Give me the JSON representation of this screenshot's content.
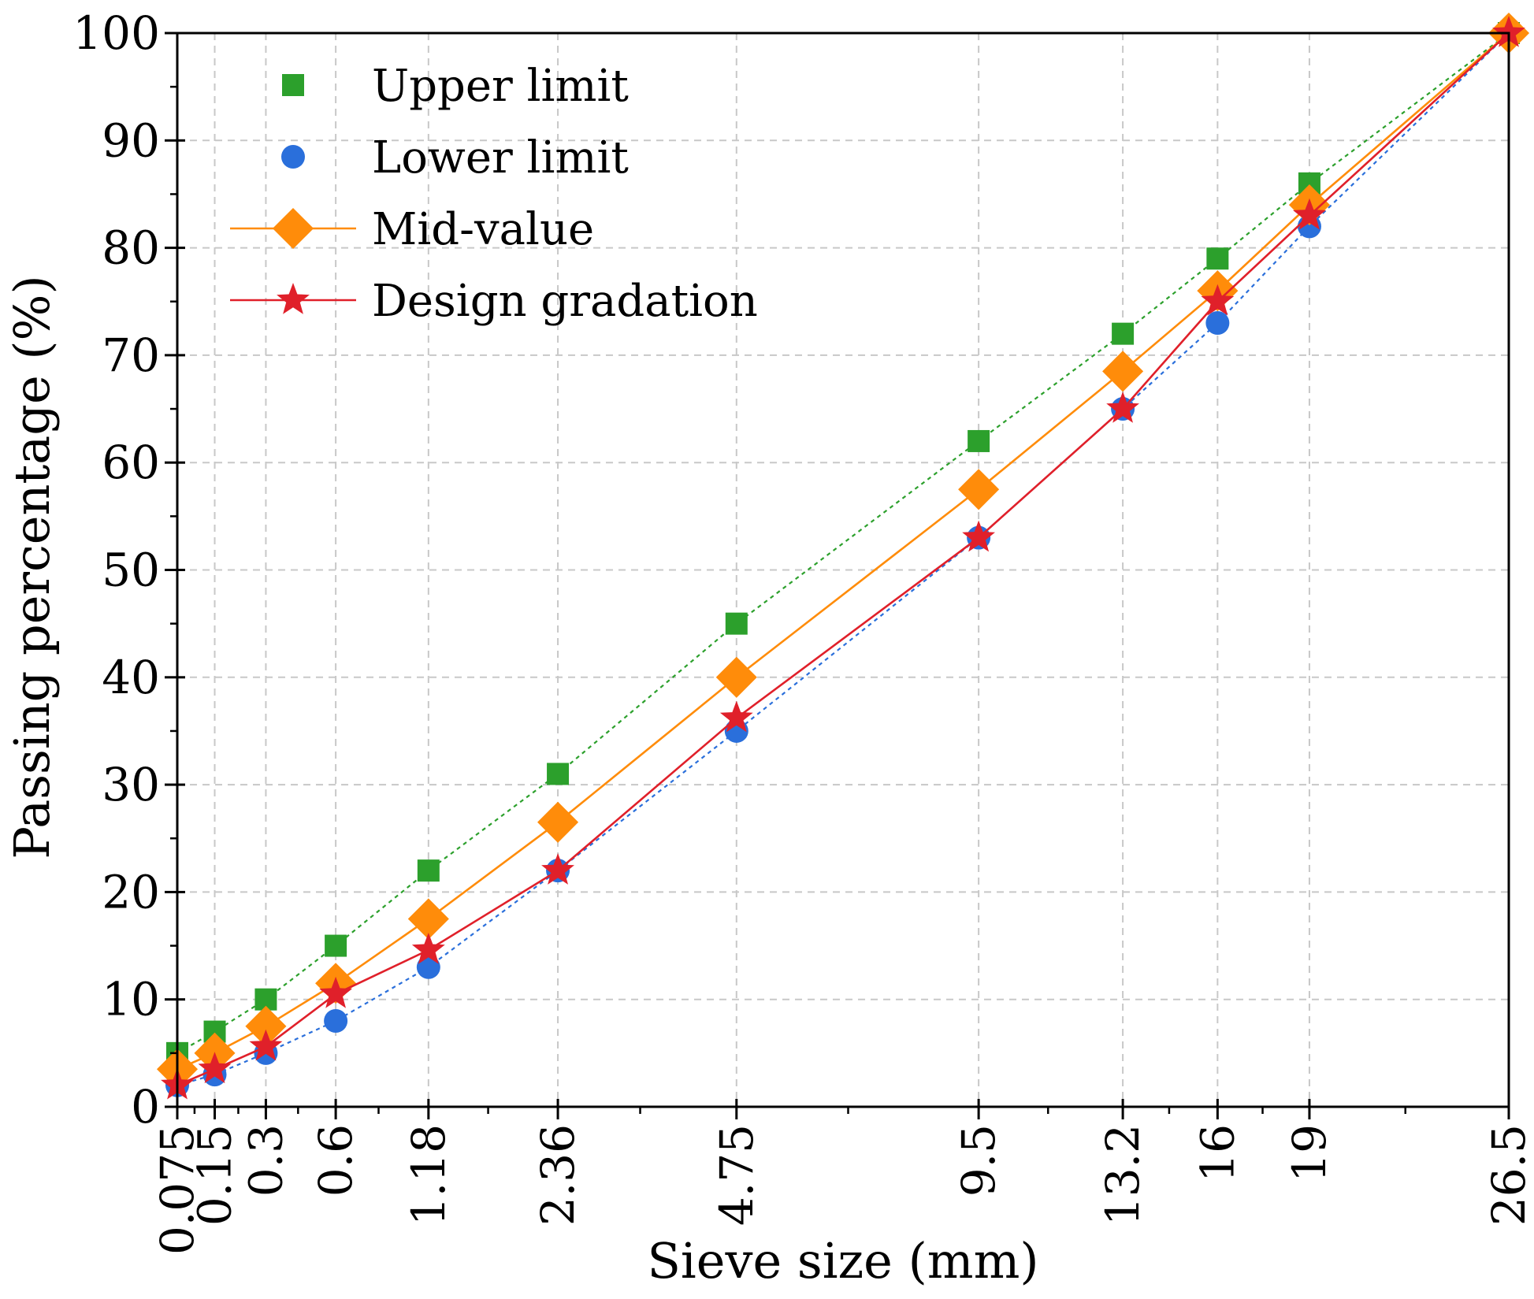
{
  "chart_data": {
    "type": "line",
    "xscale": "log",
    "xlabel": "Sieve size (mm)",
    "ylabel": "Passing percentage (%)",
    "x": [
      0.075,
      0.15,
      0.3,
      0.6,
      1.18,
      2.36,
      4.75,
      9.5,
      13.2,
      16,
      19,
      26.5
    ],
    "xtick_labels": [
      "0.075",
      "0.15",
      "0.3",
      "0.6",
      "1.18",
      "2.36",
      "4.75",
      "9.5",
      "13.2",
      "16",
      "19",
      "26.5"
    ],
    "ylim": [
      0,
      100
    ],
    "yticks": [
      0,
      10,
      20,
      30,
      40,
      50,
      60,
      70,
      80,
      90,
      100
    ],
    "ytick_labels": [
      "0",
      "10",
      "20",
      "30",
      "40",
      "50",
      "60",
      "70",
      "80",
      "90",
      "100"
    ],
    "grid": true,
    "legend_position": "top-left",
    "series": [
      {
        "name": "Upper limit",
        "marker": "square",
        "line": "dotted",
        "show_line_in_legend": false,
        "color": "#2ca02c",
        "values": [
          5,
          7,
          10,
          15,
          22,
          31,
          45,
          62,
          72,
          79,
          86,
          100
        ]
      },
      {
        "name": "Lower limit",
        "marker": "circle",
        "line": "dotted",
        "show_line_in_legend": false,
        "color": "#2a6fdb",
        "values": [
          2,
          3,
          5,
          8,
          13,
          22,
          35,
          53,
          65,
          73,
          82,
          100
        ]
      },
      {
        "name": "Mid-value",
        "marker": "diamond",
        "line": "solid",
        "show_line_in_legend": true,
        "color": "#ff8c0a",
        "values": [
          3.5,
          5,
          7.5,
          11.5,
          17.5,
          26.5,
          40,
          57.5,
          68.5,
          76,
          84,
          100
        ]
      },
      {
        "name": "Design gradation",
        "marker": "star",
        "line": "solid",
        "show_line_in_legend": true,
        "color": "#e0202a",
        "values": [
          2,
          3.5,
          5.6,
          10.5,
          14.6,
          22,
          36.2,
          53,
          65,
          75,
          83,
          100
        ]
      }
    ]
  }
}
